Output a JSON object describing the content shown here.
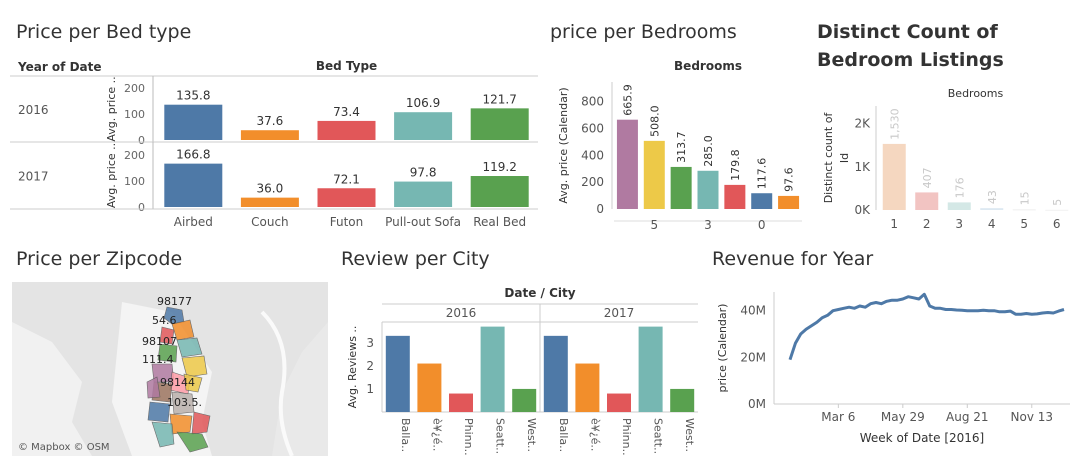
{
  "dashboard": {
    "bed_title": "Price per Bed type",
    "bedrooms_title": "price per Bedrooms",
    "distinct_title": "Distinct Count of Bedroom Listings",
    "zipcode_title": "Price per Zipcode",
    "review_title": "Review per City",
    "revenue_title": "Revenue for Year",
    "map_credit": "© Mapbox © OSM"
  },
  "map": {
    "labels": [
      "98177",
      "54.6",
      "98107",
      "111.4",
      "98144",
      "103.5."
    ],
    "colors": [
      "#4e79a7",
      "#f28e2b",
      "#e15759",
      "#76b7b2",
      "#59a14f",
      "#edc948",
      "#b07aa1",
      "#ff9da7",
      "#9c755f",
      "#bab0ac"
    ]
  },
  "chart_data": [
    {
      "id": "bed_type",
      "type": "bar",
      "header_left": "Year of Date",
      "header": "Bed Type",
      "ylabel": "Avg. price ..",
      "categories": [
        "Airbed",
        "Couch",
        "Futon",
        "Pull-out Sofa",
        "Real Bed"
      ],
      "colors": [
        "#4e79a7",
        "#f28e2b",
        "#e15759",
        "#76b7b2",
        "#59a14f"
      ],
      "rows": [
        {
          "name": "2016",
          "values": [
            135.8,
            37.6,
            73.4,
            106.9,
            121.7
          ],
          "labels": [
            "135.8",
            "37.6",
            "73.4",
            "106.9",
            "121.7"
          ]
        },
        {
          "name": "2017",
          "values": [
            166.8,
            36.0,
            72.1,
            97.8,
            119.2
          ],
          "labels": [
            "166.8",
            "36.0",
            "72.1",
            "97.8",
            "119.2"
          ]
        }
      ],
      "yticks": [
        "0",
        "100",
        "200"
      ],
      "ylim": [
        0,
        200
      ]
    },
    {
      "id": "bedrooms",
      "type": "bar",
      "header": "Bedrooms",
      "ylabel": "Avg. price (Calendar)",
      "values": [
        665.9,
        508.0,
        313.7,
        285.0,
        179.8,
        117.6,
        97.6
      ],
      "labels": [
        "665.9",
        "508.0",
        "313.7",
        "285.0",
        "179.8",
        "117.6",
        "97.6"
      ],
      "colors": [
        "#b07aa1",
        "#edc948",
        "#59a14f",
        "#76b7b2",
        "#e15759",
        "#4e79a7",
        "#f28e2b"
      ],
      "xticks": [
        "5",
        "3",
        "0"
      ],
      "yticks": [
        "0",
        "200",
        "400",
        "600",
        "800"
      ],
      "ylim": [
        0,
        850
      ]
    },
    {
      "id": "distinct",
      "type": "bar",
      "header": "Bedrooms",
      "ylabel": "Distinct count of Id",
      "categories": [
        "1",
        "2",
        "3",
        "4",
        "5",
        "6"
      ],
      "values": [
        1530,
        407,
        176,
        43,
        15,
        5
      ],
      "labels": [
        "1,530",
        "407",
        "176",
        "43",
        "15",
        "5"
      ],
      "colors": [
        "#f5d7c0",
        "#f2c4c2",
        "#d4e8e6",
        "#dde9f2",
        "#eeeeee",
        "#f1f1f1"
      ],
      "yticks": [
        "0K",
        "1K",
        "2K"
      ],
      "ylim": [
        0,
        2500
      ]
    },
    {
      "id": "reviews",
      "type": "bar",
      "header": "Date / City",
      "ylabel": "Avg. Reviews ..",
      "panels": [
        "2016",
        "2017"
      ],
      "categories": [
        "Balla..",
        "è¥¿é..",
        "Phinn..",
        "Seatt..",
        "West.."
      ],
      "values": [
        3.3,
        2.1,
        0.8,
        3.7,
        1.0
      ],
      "colors": [
        "#4e79a7",
        "#f28e2b",
        "#e15759",
        "#76b7b2",
        "#59a14f"
      ],
      "yticks": [
        "1",
        "2",
        "3"
      ],
      "ylim": [
        0,
        3.9
      ]
    },
    {
      "id": "revenue",
      "type": "line",
      "xlabel": "Week of Date [2016]",
      "ylabel": "price (Calendar)",
      "xticks": [
        "Mar 6",
        "May 29",
        "Aug 21",
        "Nov 13"
      ],
      "yticks": [
        "0M",
        "20M",
        "40M"
      ],
      "ylim": [
        0,
        48
      ],
      "x": [
        1,
        2,
        3,
        4,
        5,
        6,
        7,
        8,
        9,
        10,
        11,
        12,
        13,
        14,
        15,
        16,
        17,
        18,
        19,
        20,
        21,
        22,
        23,
        24,
        25,
        26,
        27,
        28,
        29,
        30,
        31,
        32,
        33,
        34,
        35,
        36,
        37,
        38,
        39,
        40,
        41,
        42,
        43,
        44,
        45,
        46,
        47,
        48,
        49,
        50,
        51,
        52
      ],
      "values": [
        19,
        26,
        30,
        32,
        33.5,
        35,
        37,
        38,
        40,
        40.5,
        41,
        41.5,
        41,
        42,
        41.5,
        43,
        43.5,
        43,
        44,
        44.5,
        44.5,
        45,
        46,
        45.5,
        45,
        47,
        42,
        41,
        41,
        40.5,
        40.5,
        40.3,
        40.2,
        40,
        40,
        40,
        40.2,
        40,
        40,
        39.5,
        39.5,
        39.8,
        38.5,
        38.5,
        38.8,
        38.5,
        38.6,
        39,
        39.2,
        39,
        39.8,
        40.5
      ],
      "color": "#4e79a7"
    }
  ]
}
